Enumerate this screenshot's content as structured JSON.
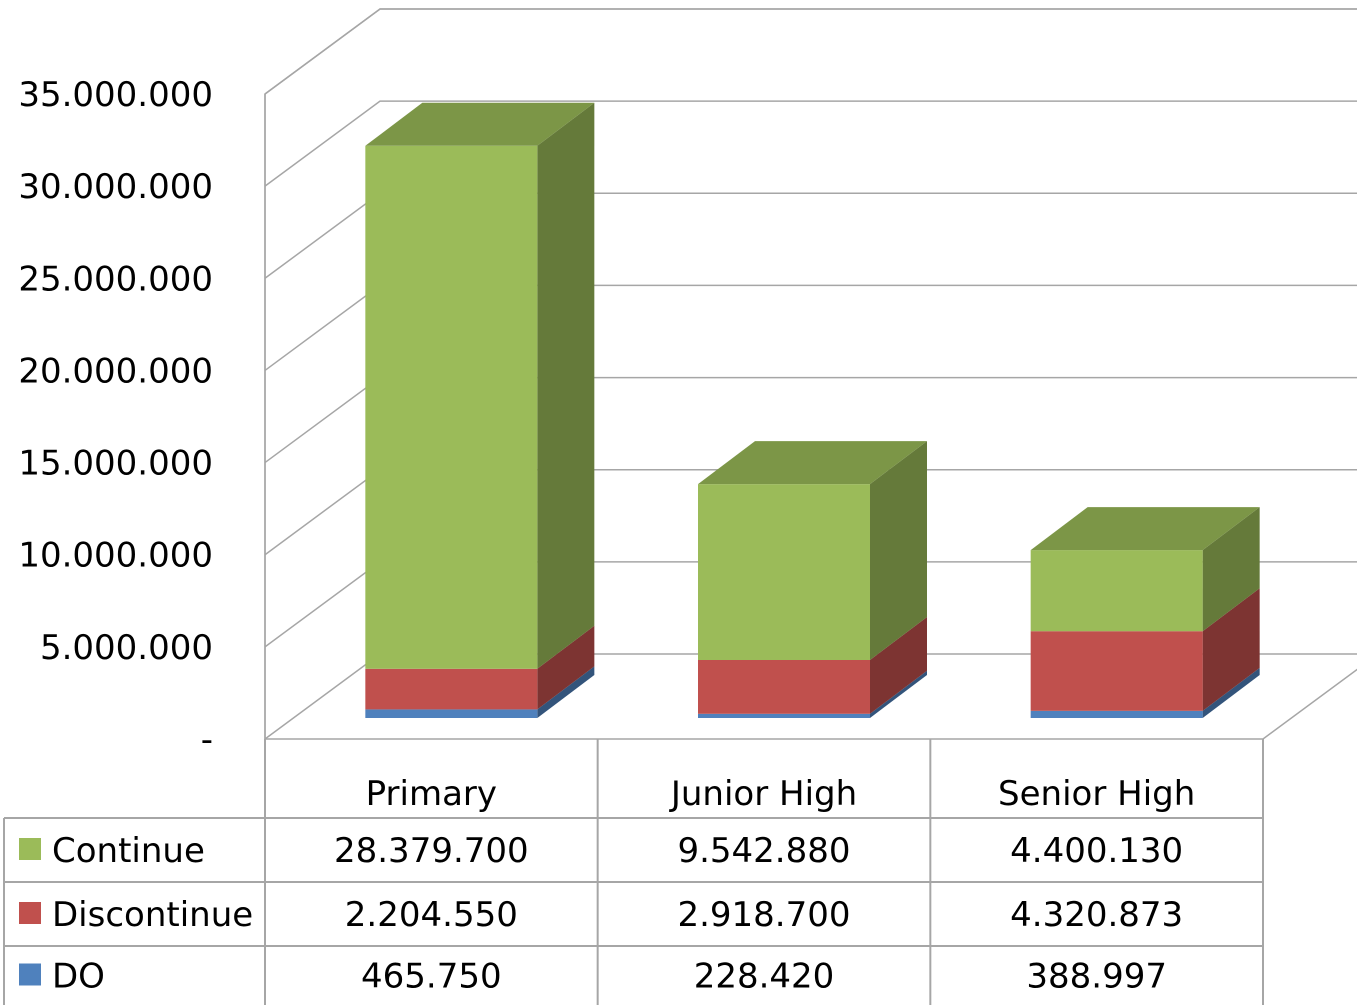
{
  "chart_data": {
    "type": "bar",
    "stacked": true,
    "view": "3d",
    "categories": [
      "Primary",
      "Junior High",
      "Senior High"
    ],
    "series": [
      {
        "name": "DO",
        "values": [
          465750,
          228420,
          388997
        ],
        "color": "#4f81bd",
        "labels": [
          "465.750",
          "228.420",
          "388.997"
        ]
      },
      {
        "name": "Discontinue",
        "values": [
          2204550,
          2918700,
          4320873
        ],
        "color": "#c0504d",
        "labels": [
          "2.204.550",
          "2.918.700",
          "4.320.873"
        ]
      },
      {
        "name": "Continue",
        "values": [
          28379700,
          9542880,
          4400130
        ],
        "color": "#9bbb59",
        "labels": [
          "28.379.700",
          "9.542.880",
          "4.400.130"
        ]
      }
    ],
    "table_row_order": [
      "Continue",
      "Discontinue",
      "DO"
    ],
    "yticks": [
      {
        "value": 0,
        "label": "-"
      },
      {
        "value": 5000000,
        "label": "5.000.000"
      },
      {
        "value": 10000000,
        "label": "10.000.000"
      },
      {
        "value": 15000000,
        "label": "15.000.000"
      },
      {
        "value": 20000000,
        "label": "20.000.000"
      },
      {
        "value": 25000000,
        "label": "25.000.000"
      },
      {
        "value": 30000000,
        "label": "30.000.000"
      },
      {
        "value": 35000000,
        "label": "35.000.000"
      }
    ],
    "ylim": [
      0,
      35000000
    ],
    "grid": true,
    "legend": "data-table"
  }
}
